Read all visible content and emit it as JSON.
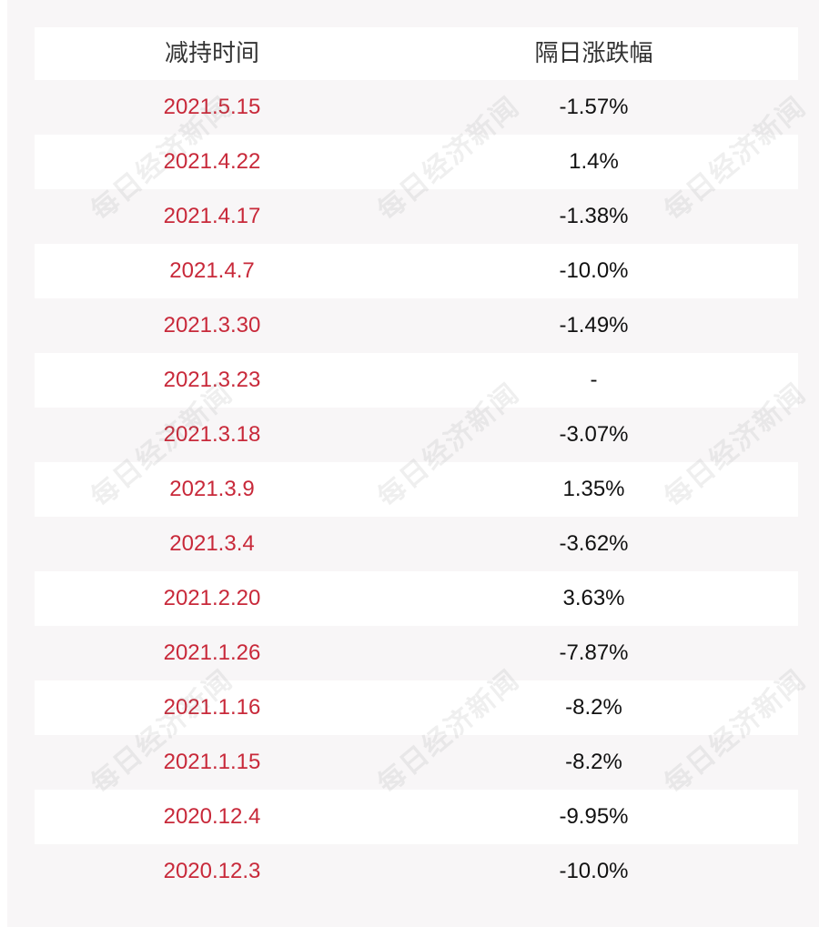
{
  "header": {
    "col_date": "减持时间",
    "col_change": "隔日涨跌幅"
  },
  "rows": [
    {
      "date": "2021.5.15",
      "change": "-1.57%"
    },
    {
      "date": "2021.4.22",
      "change": "1.4%"
    },
    {
      "date": "2021.4.17",
      "change": "-1.38%"
    },
    {
      "date": "2021.4.7",
      "change": "-10.0%"
    },
    {
      "date": "2021.3.30",
      "change": "-1.49%"
    },
    {
      "date": "2021.3.23",
      "change": "-"
    },
    {
      "date": "2021.3.18",
      "change": "-3.07%"
    },
    {
      "date": "2021.3.9",
      "change": "1.35%"
    },
    {
      "date": "2021.3.4",
      "change": "-3.62%"
    },
    {
      "date": "2021.2.20",
      "change": "3.63%"
    },
    {
      "date": "2021.1.26",
      "change": "-7.87%"
    },
    {
      "date": "2021.1.16",
      "change": "-8.2%"
    },
    {
      "date": "2021.1.15",
      "change": "-8.2%"
    },
    {
      "date": "2020.12.4",
      "change": "-9.95%"
    },
    {
      "date": "2020.12.3",
      "change": "-10.0%"
    }
  ],
  "watermark": "每日经济新闻",
  "colors": {
    "date_text": "#c8293a",
    "change_text": "#111111",
    "row_tint": "#f8f6f7",
    "row_white": "#ffffff"
  }
}
